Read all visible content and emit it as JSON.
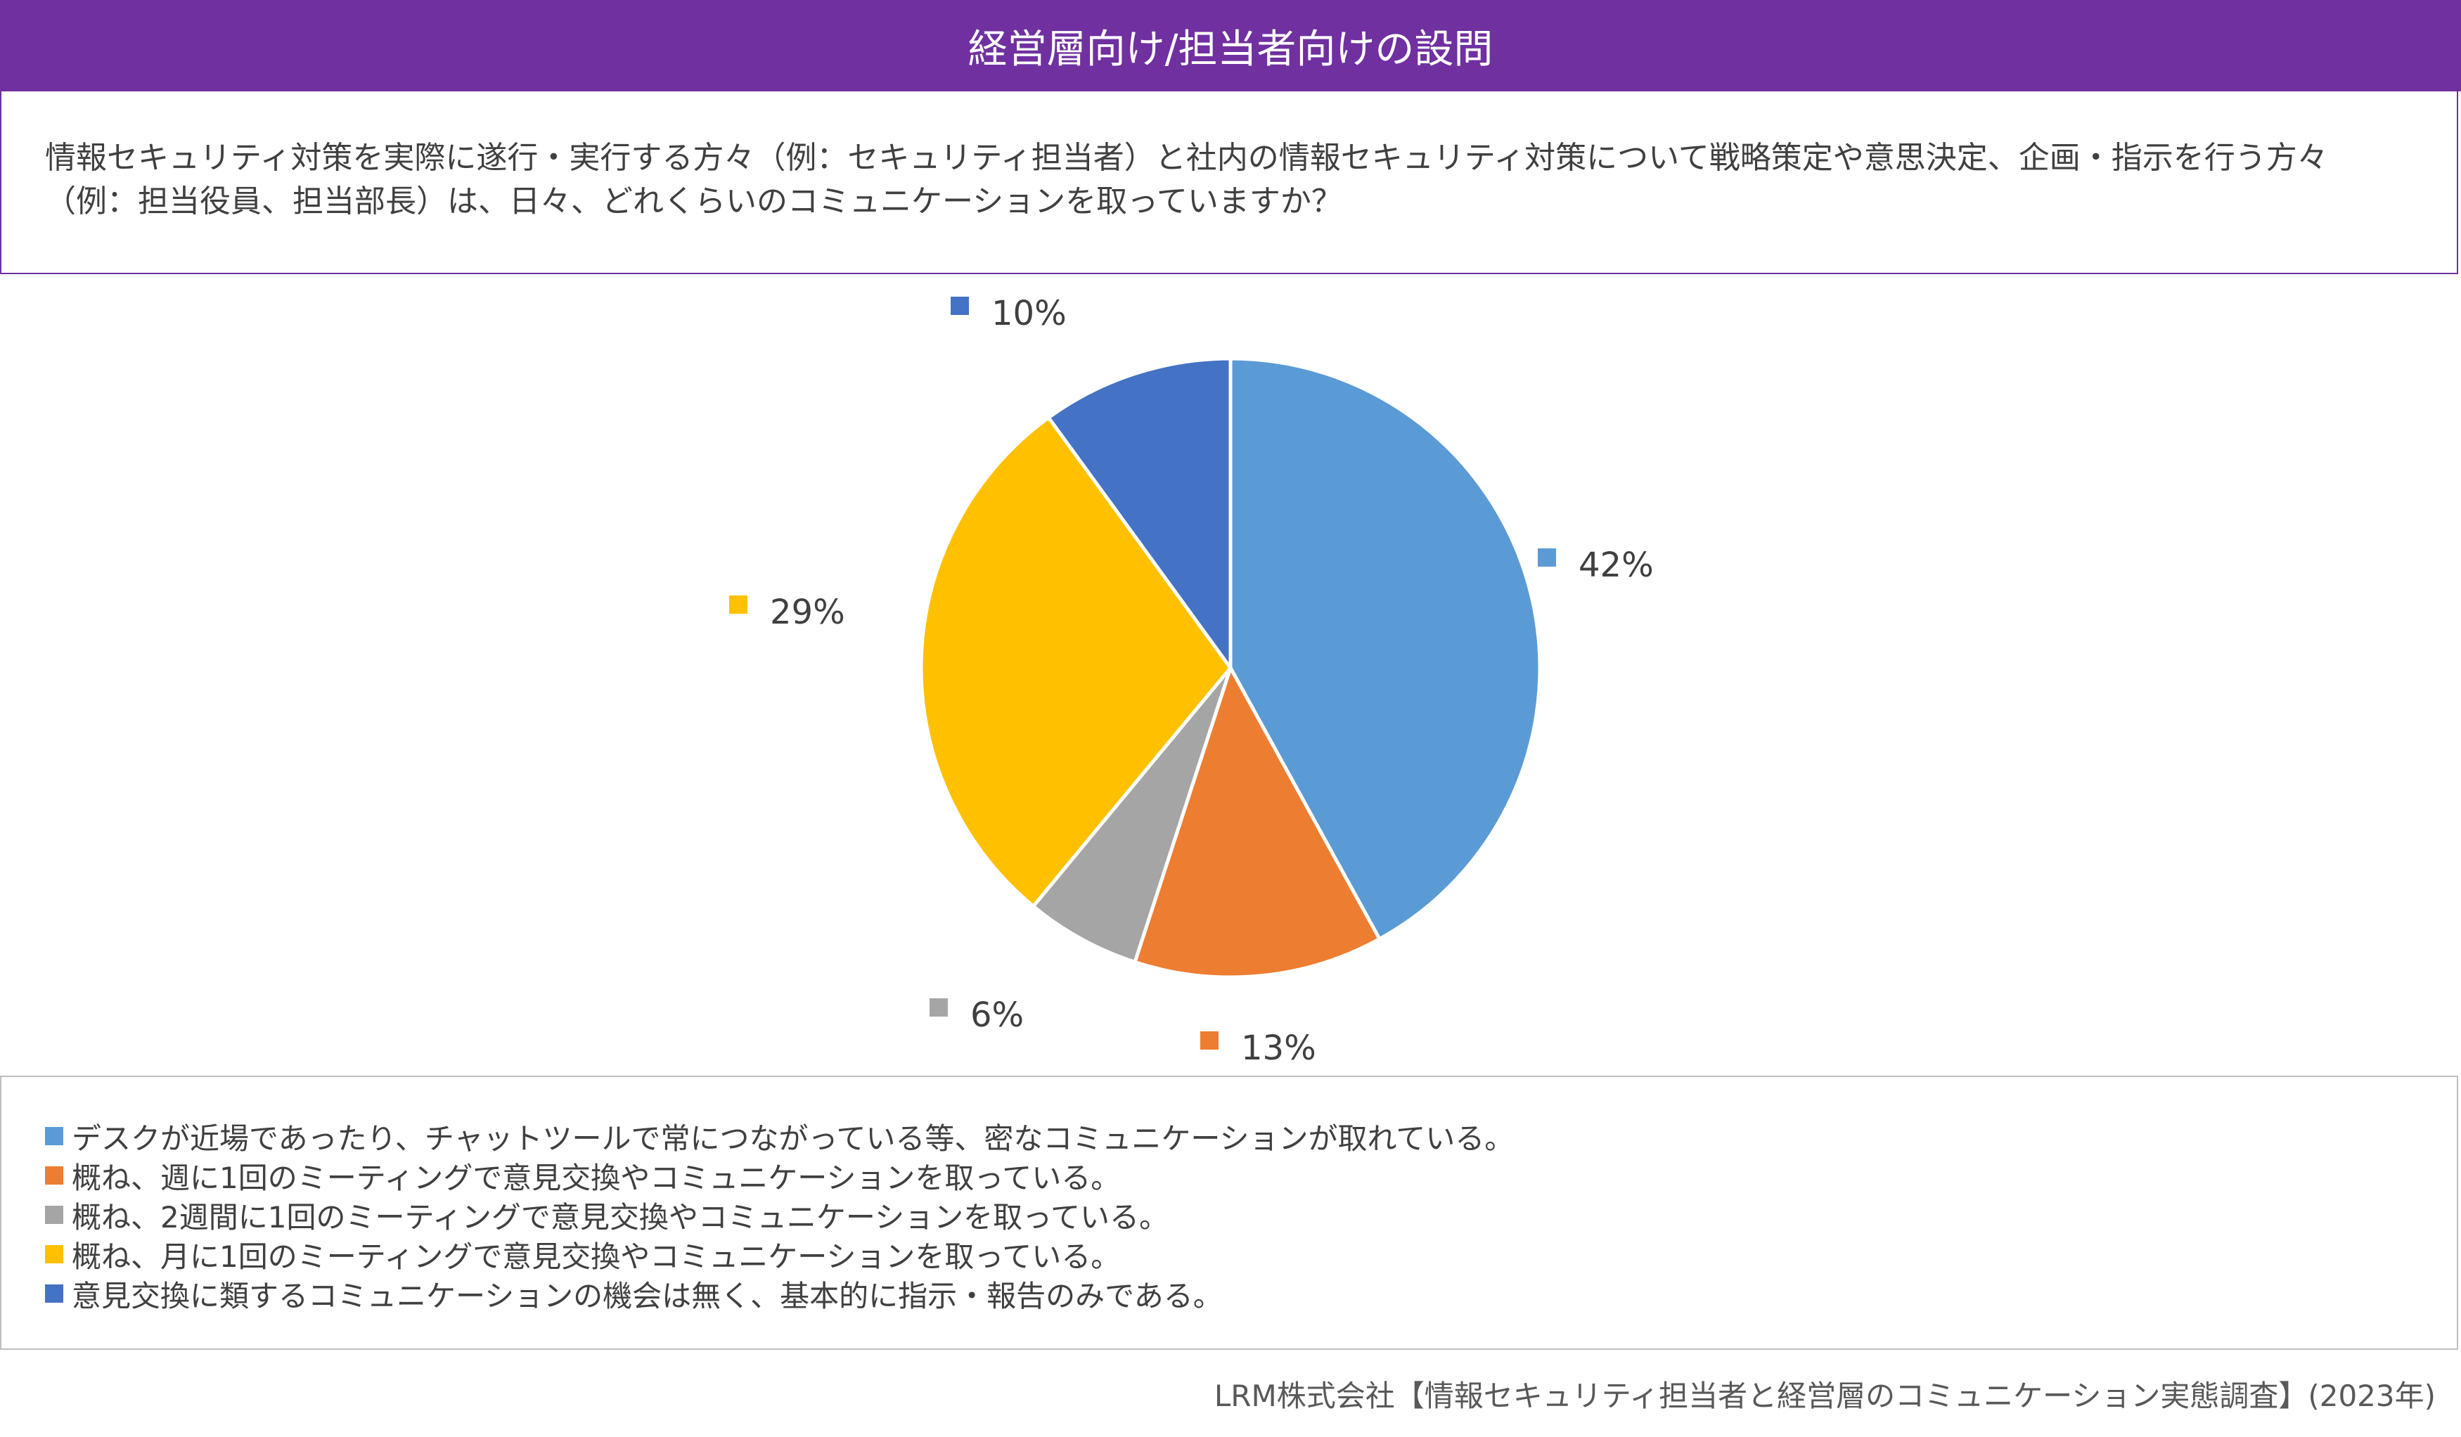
{
  "header": {
    "title": "経営層向け/担当者向けの設問"
  },
  "question": {
    "text": "情報セキュリティ対策を実際に遂行・実行する方々（例：セキュリティ担当者）と社内の情報セキュリティ対策について戦略策定や意思決定、企画・指示を行う方々（例：担当役員、担当部長）は、日々、どれくらいのコミュニケーションを取っていますか？"
  },
  "chart_data": {
    "type": "pie",
    "title": "",
    "series": [
      {
        "name": "デスクが近場であったり、チャットツールで常につながっている等、密なコミュニケーションが取れている。",
        "value": 42,
        "label": "42%",
        "color": "#5b9bd5"
      },
      {
        "name": "概ね、週に1回のミーティングで意見交換やコミュニケーションを取っている。",
        "value": 13,
        "label": "13%",
        "color": "#ed7d31"
      },
      {
        "name": "概ね、2週間に1回のミーティングで意見交換やコミュニケーションを取っている。",
        "value": 6,
        "label": "6%",
        "color": "#a5a5a5"
      },
      {
        "name": "概ね、月に1回のミーティングで意見交換やコミュニケーションを取っている。",
        "value": 29,
        "label": "29%",
        "color": "#ffc000"
      },
      {
        "name": "意見交換に類するコミュニケーションの機会は無く、基本的に指示・報告のみである。",
        "value": 10,
        "label": "10%",
        "color": "#4472c4"
      }
    ],
    "legend_placement": "bottom"
  },
  "footer": {
    "source": "LRM株式会社【情報セキュリティ担当者と経営層のコミュニケーション実態調査】(2023年)"
  }
}
